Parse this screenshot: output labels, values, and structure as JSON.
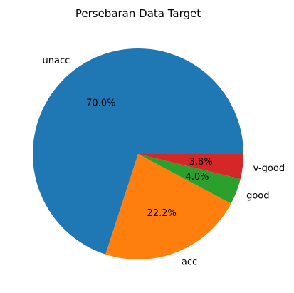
{
  "chart_data": {
    "type": "pie",
    "title": "Persebaran Data Target",
    "slices": [
      {
        "label": "unacc",
        "value": 70.0,
        "pct_label": "70.0%",
        "color": "#1f77b4"
      },
      {
        "label": "acc",
        "value": 22.2,
        "pct_label": "22.2%",
        "color": "#ff7f0e"
      },
      {
        "label": "good",
        "value": 4.0,
        "pct_label": "4.0%",
        "color": "#2ca02c"
      },
      {
        "label": "v-good",
        "value": 3.8,
        "pct_label": "3.8%",
        "color": "#d62728"
      }
    ],
    "start_angle": 0,
    "direction": "counterclockwise"
  }
}
